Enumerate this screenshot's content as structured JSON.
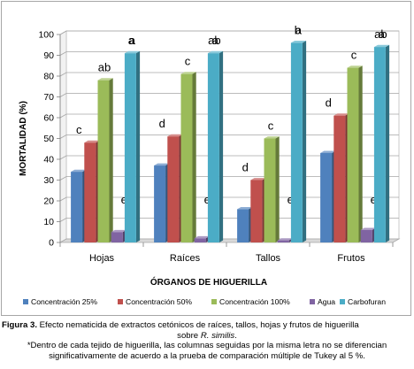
{
  "chart_data": {
    "type": "bar",
    "title": "",
    "xlabel": "ÓRGANOS DE HIGUERILLA",
    "ylabel": "MORTALIDAD (%)",
    "ylim": [
      0,
      100
    ],
    "yticks": [
      0,
      10,
      20,
      30,
      40,
      50,
      60,
      70,
      80,
      90,
      100
    ],
    "grid": true,
    "style": "3d-clustered",
    "legend_position": "bottom",
    "categories": [
      "Hojas",
      "Raíces",
      "Tallos",
      "Frutos"
    ],
    "series": [
      {
        "name": "Concentración 25%",
        "color": "#4f81bd",
        "values": [
          34,
          37,
          16,
          43
        ],
        "labels": [
          "",
          "",
          "",
          ""
        ]
      },
      {
        "name": "Concentración 50%",
        "color": "#c0504d",
        "values": [
          48,
          51,
          30,
          61
        ],
        "labels": [
          "c",
          "d",
          "d",
          "d"
        ]
      },
      {
        "name": "Concentración 100%",
        "color": "#9bbb59",
        "values": [
          78,
          81,
          50,
          84
        ],
        "labels": [
          "ab",
          "c",
          "c",
          "c"
        ]
      },
      {
        "name": "Agua",
        "color": "#8064a2",
        "values": [
          5,
          2,
          1,
          6
        ],
        "labels": [
          "e",
          "e",
          "e",
          "e"
        ]
      },
      {
        "name": "Carbofuran",
        "color": "#4bacc6",
        "values": [
          91,
          91,
          96,
          94
        ],
        "labels": [
          "a",
          "ab",
          "b",
          "ab"
        ]
      }
    ],
    "extra_labels": [
      {
        "text": "a",
        "category": 0
      },
      {
        "text": "a",
        "category": 1
      },
      {
        "text": "a",
        "category": 2
      },
      {
        "text": "a",
        "category": 3
      }
    ]
  },
  "caption": {
    "figure_label": "Figura 3.",
    "line1": " Efecto nematicida de extractos cetónicos de raíces, tallos, hojas y frutos de higuerilla",
    "line2_pre": "sobre ",
    "species": "R. similis",
    "line2_post": ".",
    "line3": "*Dentro de cada tejido de higuerilla, las columnas seguidas por la misma letra no se diferencian",
    "line4": "significativamente de acuerdo a la prueba de comparación múltiple de Tukey al 5 %."
  }
}
